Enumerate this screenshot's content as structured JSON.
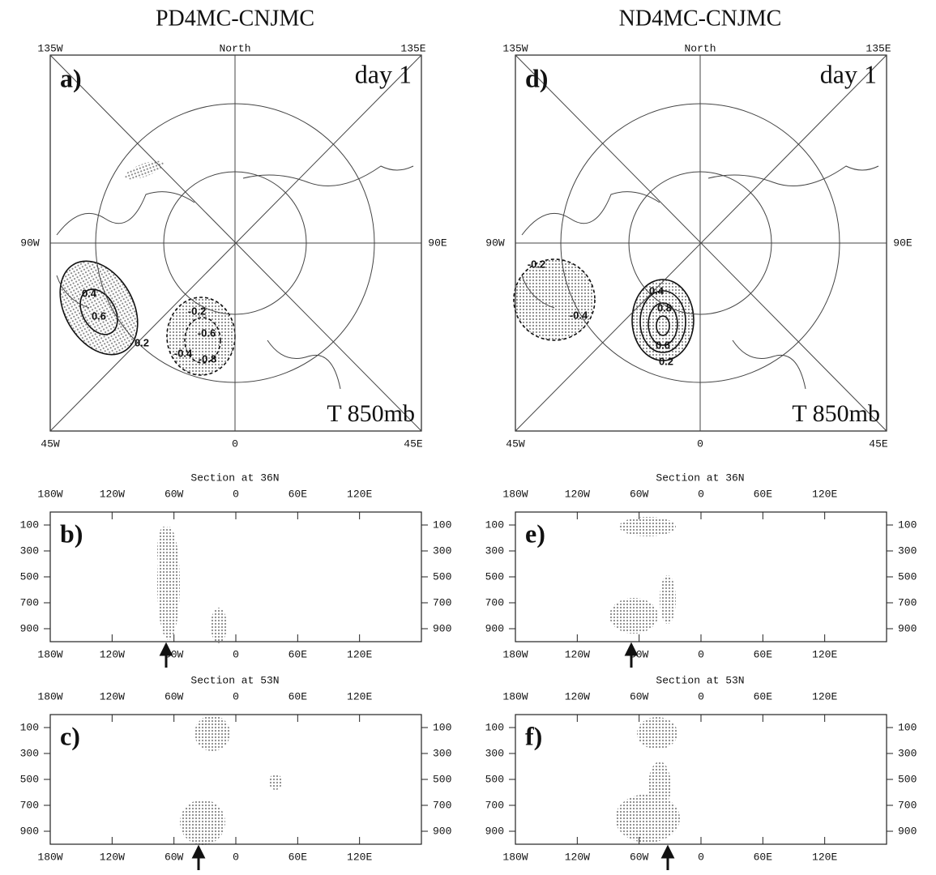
{
  "panels": [
    {
      "title": "PD4MC-CNJMC",
      "map": {
        "label": "a)",
        "time": "day 1",
        "field": "T 850mb",
        "edges": {
          "top_left": "135W",
          "top": "North",
          "top_right": "135E",
          "left": "90W",
          "right": "90E",
          "bottom_left": "45W",
          "bottom": "0",
          "bottom_right": "45E"
        },
        "contour_labels": [
          "0.4",
          "0.6",
          "0.2",
          "-0.2",
          "-0.6",
          "-0.8",
          "-0.4"
        ]
      },
      "sections": [
        {
          "label": "b)",
          "title": "Section at 36N",
          "xlim": [
            -180,
            180
          ],
          "xticks": [
            {
              "value": -180,
              "label": "180W"
            },
            {
              "value": -120,
              "label": "120W"
            },
            {
              "value": -60,
              "label": "60W"
            },
            0,
            {
              "value": 60,
              "label": "60E"
            },
            {
              "value": 120,
              "label": "120E"
            }
          ],
          "ylim": [
            0,
            1000
          ],
          "yticks": [
            100,
            300,
            500,
            700,
            900
          ]
        },
        {
          "label": "c)",
          "title": "Section at 53N",
          "xlim": [
            -180,
            180
          ],
          "xticks": [
            {
              "value": -180,
              "label": "180W"
            },
            {
              "value": -120,
              "label": "120W"
            },
            {
              "value": -60,
              "label": "60W"
            },
            0,
            {
              "value": 60,
              "label": "60E"
            },
            {
              "value": 120,
              "label": "120E"
            }
          ],
          "ylim": [
            0,
            1000
          ],
          "yticks": [
            100,
            300,
            500,
            700,
            900
          ]
        }
      ]
    },
    {
      "title": "ND4MC-CNJMC",
      "map": {
        "label": "d)",
        "time": "day 1",
        "field": "T 850mb",
        "edges": {
          "top_left": "135W",
          "top": "North",
          "top_right": "135E",
          "left": "90W",
          "right": "90E",
          "bottom_left": "45W",
          "bottom": "0",
          "bottom_right": "45E"
        },
        "contour_labels": [
          "-0.2",
          "-0.4",
          "0.4",
          "0.8",
          "0.6",
          "0.2"
        ]
      },
      "sections": [
        {
          "label": "e)",
          "title": "Section at 36N",
          "xlim": [
            -180,
            180
          ],
          "xticks": [
            {
              "value": -180,
              "label": "180W"
            },
            {
              "value": -120,
              "label": "120W"
            },
            {
              "value": -60,
              "label": "60W"
            },
            0,
            {
              "value": 60,
              "label": "60E"
            },
            {
              "value": 120,
              "label": "120E"
            }
          ],
          "ylim": [
            0,
            1000
          ],
          "yticks": [
            100,
            300,
            500,
            700,
            900
          ]
        },
        {
          "label": "f)",
          "title": "Section at 53N",
          "xlim": [
            -180,
            180
          ],
          "xticks": [
            {
              "value": -180,
              "label": "180W"
            },
            {
              "value": -120,
              "label": "120W"
            },
            {
              "value": -60,
              "label": "60W"
            },
            0,
            {
              "value": 60,
              "label": "60E"
            },
            {
              "value": 120,
              "label": "120E"
            }
          ],
          "ylim": [
            0,
            1000
          ],
          "yticks": [
            100,
            300,
            500,
            700,
            900
          ]
        }
      ]
    }
  ]
}
